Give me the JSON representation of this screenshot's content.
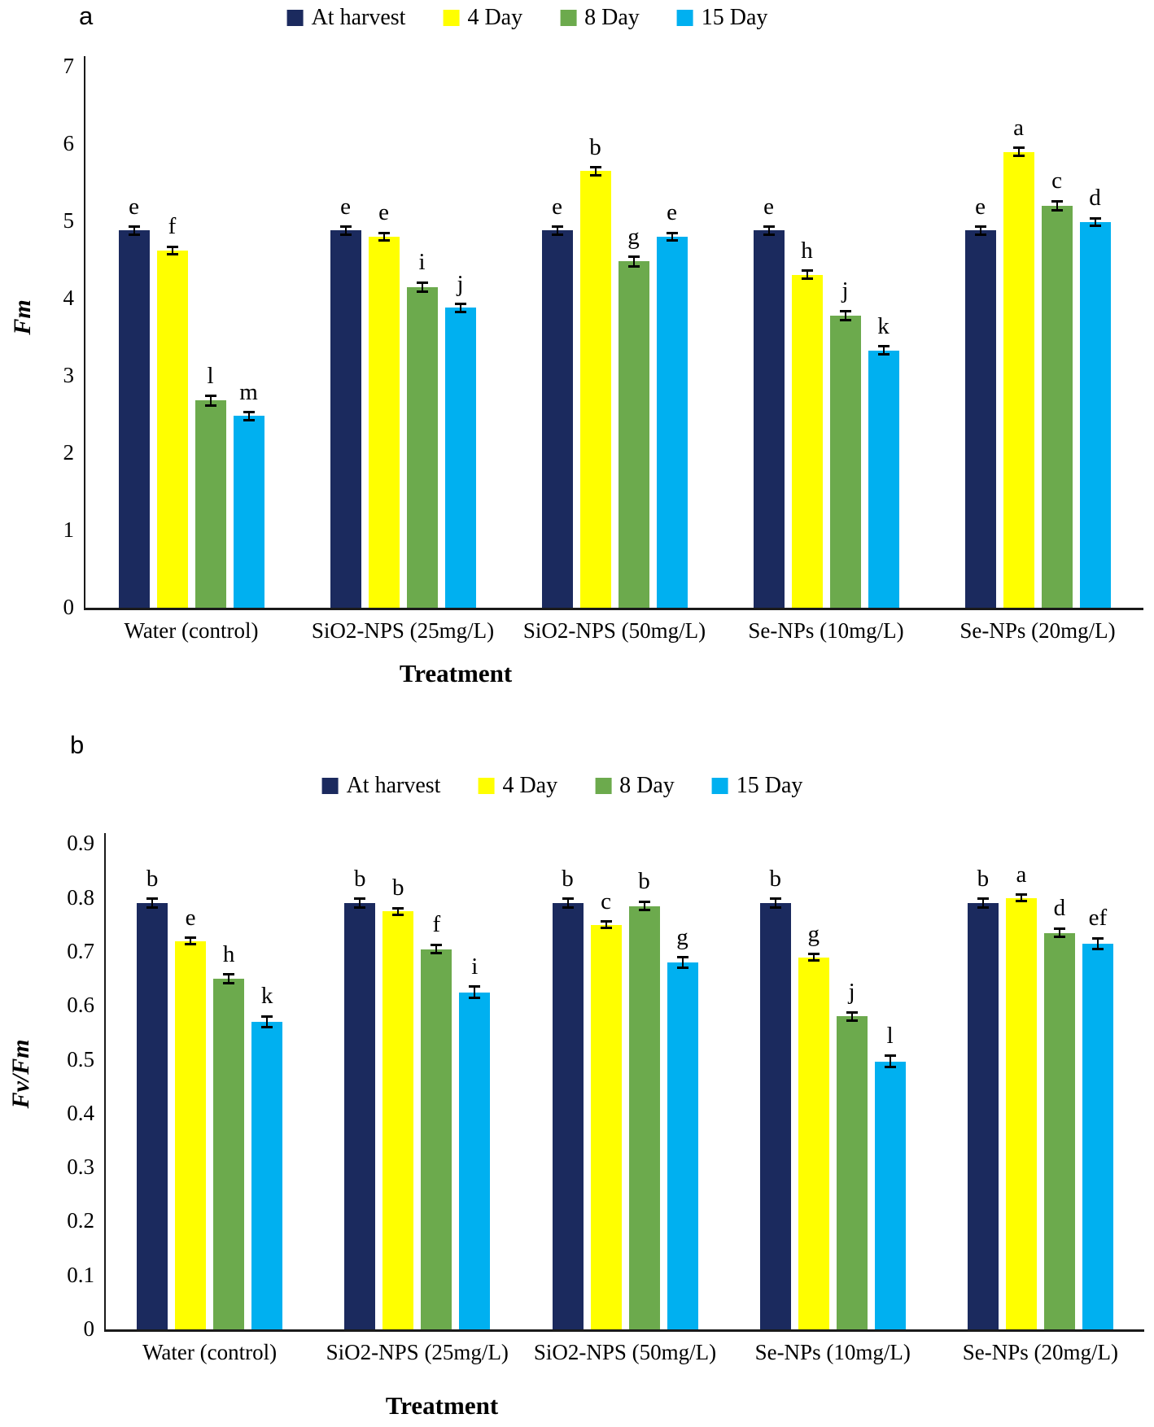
{
  "chart_data": [
    {
      "type": "bar",
      "panel_label": "a",
      "title": "",
      "ylabel": "Fm",
      "xlabel": "Treatment",
      "ylim": [
        0,
        7
      ],
      "yticks": [
        0,
        1,
        2,
        3,
        4,
        5,
        6,
        7
      ],
      "legend_position": "top",
      "grid": false,
      "error_bars": true,
      "categories": [
        "Water (control)",
        "SiO2-NPS (25mg/L)",
        "SiO2-NPS (50mg/L)",
        "Se-NPs (10mg/L)",
        "Se-NPs (20mg/L)"
      ],
      "series": [
        {
          "name": "At harvest",
          "color": "#1b2a5e",
          "values": [
            4.88,
            4.88,
            4.88,
            4.88,
            4.88
          ],
          "error": 0.05,
          "letters": [
            "e",
            "e",
            "e",
            "e",
            "e"
          ]
        },
        {
          "name": "4 Day",
          "color": "#ffff00",
          "values": [
            4.62,
            4.8,
            5.65,
            4.31,
            5.9
          ],
          "error": 0.05,
          "letters": [
            "f",
            "e",
            "b",
            "h",
            "a"
          ]
        },
        {
          "name": "8 Day",
          "color": "#6caa4d",
          "values": [
            2.68,
            4.15,
            4.48,
            3.78,
            5.2
          ],
          "error": 0.06,
          "letters": [
            "l",
            "i",
            "g",
            "j",
            "c"
          ]
        },
        {
          "name": "15 Day",
          "color": "#00b0f0",
          "values": [
            2.48,
            3.88,
            4.8,
            3.33,
            4.99
          ],
          "error": 0.05,
          "letters": [
            "m",
            "j",
            "e",
            "k",
            "d"
          ]
        }
      ]
    },
    {
      "type": "bar",
      "panel_label": "b",
      "title": "",
      "ylabel": "Fv/Fm",
      "xlabel": "Treatment",
      "ylim": [
        0,
        0.9
      ],
      "yticks": [
        0,
        0.1,
        0.2,
        0.3,
        0.4,
        0.5,
        0.6,
        0.7,
        0.8,
        0.9
      ],
      "legend_position": "top",
      "grid": false,
      "error_bars": true,
      "categories": [
        "Water (control)",
        "SiO2-NPS (25mg/L)",
        "SiO2-NPS (50mg/L)",
        "Se-NPs (10mg/L)",
        "Se-NPs (20mg/L)"
      ],
      "series": [
        {
          "name": "At harvest",
          "color": "#1b2a5e",
          "values": [
            0.79,
            0.79,
            0.79,
            0.79,
            0.79
          ],
          "error": 0.008,
          "letters": [
            "b",
            "b",
            "b",
            "b",
            "b"
          ]
        },
        {
          "name": "4 Day",
          "color": "#ffff00",
          "values": [
            0.72,
            0.775,
            0.75,
            0.69,
            0.8
          ],
          "error": 0.006,
          "letters": [
            "e",
            "b",
            "c",
            "g",
            "a"
          ]
        },
        {
          "name": "8 Day",
          "color": "#6caa4d",
          "values": [
            0.65,
            0.705,
            0.785,
            0.58,
            0.735
          ],
          "error": 0.008,
          "letters": [
            "h",
            "f",
            "b",
            "j",
            "d"
          ]
        },
        {
          "name": "15 Day",
          "color": "#00b0f0",
          "values": [
            0.57,
            0.625,
            0.68,
            0.497,
            0.715
          ],
          "error": 0.01,
          "letters": [
            "k",
            "i",
            "g",
            "l",
            "ef"
          ]
        }
      ]
    }
  ]
}
